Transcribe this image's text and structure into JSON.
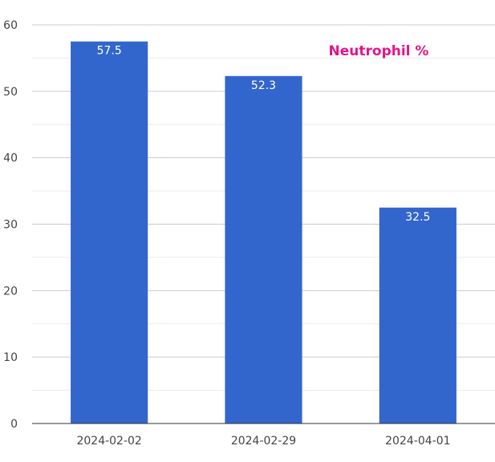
{
  "chart_data": {
    "type": "bar",
    "title": "Neutrophil %",
    "categories": [
      "2024-02-02",
      "2024-02-29",
      "2024-04-01"
    ],
    "values": [
      57.5,
      52.3,
      32.5
    ],
    "value_labels": [
      "57.5",
      "52.3",
      "32.5"
    ],
    "xlabel": "",
    "ylabel": "",
    "ylim": [
      0,
      60
    ],
    "yticks": [
      0,
      10,
      20,
      30,
      40,
      50,
      60
    ],
    "ytick_labels": [
      "0",
      "10",
      "20",
      "30",
      "40",
      "50",
      "60"
    ],
    "grid": true,
    "minor_grid": true,
    "legend": "none",
    "colors": {
      "bar": "#3366cc",
      "title": "#e0168c",
      "major_grid": "#cccccc",
      "minor_grid": "#ebebeb",
      "axis": "#333333"
    }
  }
}
